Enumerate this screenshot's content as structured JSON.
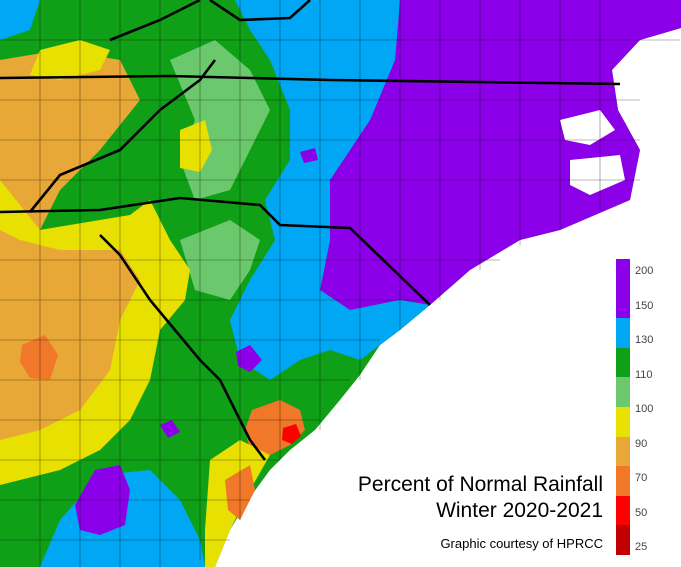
{
  "title_line1": "Percent of Normal Rainfall",
  "title_line2": "Winter 2020-2021",
  "credit": "Graphic courtesy of HPRCC",
  "colors": {
    "purple": "#8b00e8",
    "blue": "#00a7f5",
    "dark_green": "#10a018",
    "light_green": "#6cc86c",
    "yellow": "#e8e000",
    "tan": "#e8a838",
    "orange": "#f07828",
    "red": "#ff0000",
    "dark_red": "#c00000",
    "background": "#ffffff"
  },
  "legend": {
    "labels": [
      "200",
      "150",
      "130",
      "110",
      "100",
      "90",
      "70",
      "50",
      "25"
    ]
  }
}
